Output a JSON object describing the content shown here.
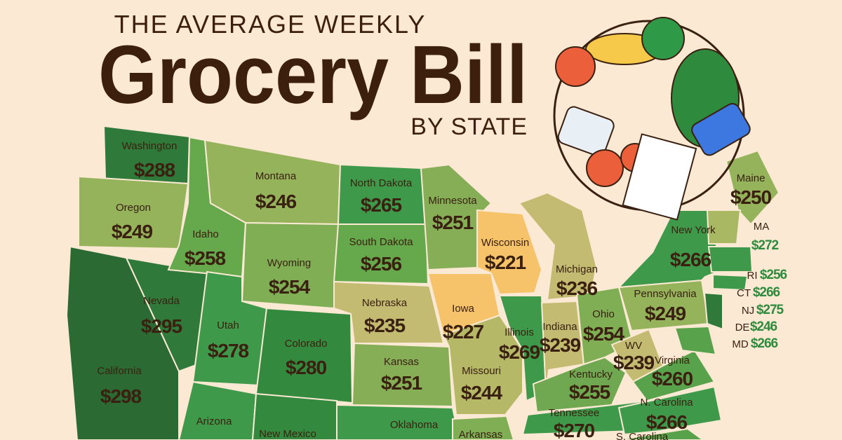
{
  "header": {
    "kicker": "THE AVERAGE WEEKLY",
    "title": "Grocery Bill",
    "subtitle": "BY STATE"
  },
  "states": [
    {
      "name": "Washington",
      "price": "$288"
    },
    {
      "name": "Oregon",
      "price": "$249"
    },
    {
      "name": "Idaho",
      "price": "$258"
    },
    {
      "name": "Montana",
      "price": "$246"
    },
    {
      "name": "North Dakota",
      "price": "$265"
    },
    {
      "name": "Minnesota",
      "price": "$251"
    },
    {
      "name": "South Dakota",
      "price": "$256"
    },
    {
      "name": "Wyoming",
      "price": "$254"
    },
    {
      "name": "Nevada",
      "price": "$295"
    },
    {
      "name": "Utah",
      "price": "$278"
    },
    {
      "name": "Colorado",
      "price": "$280"
    },
    {
      "name": "Nebraska",
      "price": "$235"
    },
    {
      "name": "Iowa",
      "price": "$227"
    },
    {
      "name": "Wisconsin",
      "price": "$221"
    },
    {
      "name": "Michigan",
      "price": "$236"
    },
    {
      "name": "Illinois",
      "price": "$269"
    },
    {
      "name": "Indiana",
      "price": "$239"
    },
    {
      "name": "Ohio",
      "price": "$254"
    },
    {
      "name": "Pennsylvania",
      "price": "$249"
    },
    {
      "name": "New York",
      "price": "$266"
    },
    {
      "name": "Maine",
      "price": "$250"
    },
    {
      "name": "MA",
      "price": "$272"
    },
    {
      "name": "RI",
      "price": "$256"
    },
    {
      "name": "CT",
      "price": "$266"
    },
    {
      "name": "NJ",
      "price": "$275"
    },
    {
      "name": "DE",
      "price": "$246"
    },
    {
      "name": "MD",
      "price": "$266"
    },
    {
      "name": "California",
      "price": "$298"
    },
    {
      "name": "Kansas",
      "price": "$251"
    },
    {
      "name": "Missouri",
      "price": "$244"
    },
    {
      "name": "Kentucky",
      "price": "$255"
    },
    {
      "name": "WV",
      "price": "$239"
    },
    {
      "name": "Virginia",
      "price": "$260"
    },
    {
      "name": "Tennessee",
      "price": "$270"
    },
    {
      "name": "N. Carolina",
      "price": "$266"
    },
    {
      "name": "Arizona"
    },
    {
      "name": "New Mexico"
    },
    {
      "name": "Oklahoma"
    },
    {
      "name": "Arkansas"
    },
    {
      "name": "S. Carolina"
    }
  ]
}
